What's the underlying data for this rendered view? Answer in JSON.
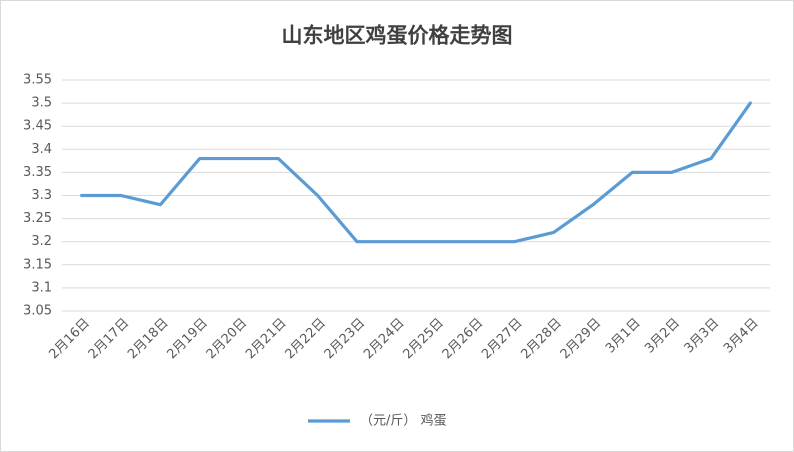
{
  "chart_data": {
    "type": "line",
    "title": "山东地区鸡蛋价格走势图",
    "categories": [
      "2月16日",
      "2月17日",
      "2月18日",
      "2月19日",
      "2月20日",
      "2月21日",
      "2月22日",
      "2月23日",
      "2月24日",
      "2月25日",
      "2月26日",
      "2月27日",
      "2月28日",
      "2月29日",
      "3月1日",
      "3月2日",
      "3月3日",
      "3月4日"
    ],
    "series": [
      {
        "name": "（元/斤） 鸡蛋",
        "color": "#5b9bd5",
        "values": [
          3.3,
          3.3,
          3.28,
          3.38,
          3.38,
          3.38,
          3.3,
          3.2,
          3.2,
          3.2,
          3.2,
          3.2,
          3.22,
          3.28,
          3.35,
          3.35,
          3.38,
          3.5
        ]
      }
    ],
    "ylim": [
      3.05,
      3.55
    ],
    "yticks": [
      3.05,
      3.1,
      3.15,
      3.2,
      3.25,
      3.3,
      3.35,
      3.4,
      3.45,
      3.5,
      3.55
    ],
    "grid": true,
    "legend": "bottom"
  }
}
